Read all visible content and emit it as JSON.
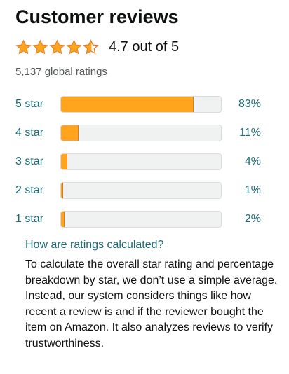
{
  "header": {
    "title": "Customer reviews"
  },
  "summary": {
    "rating": 4.7,
    "rating_text": "4.7 out of 5",
    "global_ratings": "5,137 global ratings",
    "star_icons": [
      "star-full-icon",
      "star-full-icon",
      "star-full-icon",
      "star-full-icon",
      "star-half-icon"
    ]
  },
  "histogram": [
    {
      "label": "5 star",
      "percent": 83,
      "percent_text": "83%"
    },
    {
      "label": "4 star",
      "percent": 11,
      "percent_text": "11%"
    },
    {
      "label": "3 star",
      "percent": 4,
      "percent_text": "4%"
    },
    {
      "label": "2 star",
      "percent": 1,
      "percent_text": "1%"
    },
    {
      "label": "1 star",
      "percent": 2,
      "percent_text": "2%"
    }
  ],
  "info": {
    "link_text": "How are ratings calculated?",
    "explanation": "To calculate the overall star rating and percentage breakdown by star, we don’t use a simple average. Instead, our system considers things like how recent a review is and if the reviewer bought the item on Amazon. It also analyzes reviews to verify trustworthiness."
  },
  "colors": {
    "star": "#ffa41c",
    "star_outline": "#de7921",
    "link": "#1a6a75",
    "bar_track": "#f0f2f2"
  }
}
